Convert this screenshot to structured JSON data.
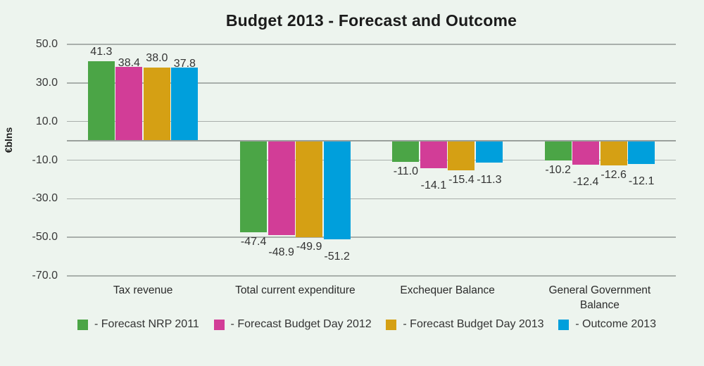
{
  "page": {
    "background": "#edf4ee",
    "grid_color": "#a9afab",
    "zero_line_color": "#9aa09c"
  },
  "chart_data": {
    "type": "bar",
    "title": "Budget 2013 - Forecast and Outcome",
    "xlabel": "",
    "ylabel": "€blns",
    "ylim": [
      -70,
      50
    ],
    "grid": true,
    "legend_position": "bottom",
    "y_ticks": [
      50,
      30,
      10,
      -10,
      -30,
      -50,
      -70
    ],
    "y_tick_labels": [
      "50.0",
      "30.0",
      "10.0",
      "-10.0",
      "-30.0",
      "-50.0",
      "-70.0"
    ],
    "categories": [
      "Tax revenue",
      "Total current expenditure",
      "Exchequer Balance",
      "General Government Balance"
    ],
    "series": [
      {
        "name": "Forecast NRP 2011",
        "legend_label": "- Forecast NRP 2011",
        "color": "#4BA546",
        "values": [
          41.3,
          -47.4,
          -11.0,
          -10.2
        ]
      },
      {
        "name": "Forecast Budget Day 2012",
        "legend_label": "- Forecast Budget Day 2012",
        "color": "#D23D97",
        "values": [
          38.4,
          -48.9,
          -14.1,
          -12.4
        ]
      },
      {
        "name": "Forecast Budget Day 2013",
        "legend_label": "- Forecast Budget Day 2013",
        "color": "#D5A014",
        "values": [
          38.0,
          -49.9,
          -15.4,
          -12.6
        ]
      },
      {
        "name": "Outcome 2013",
        "legend_label": "- Outcome 2013",
        "color": "#009FDC",
        "values": [
          37.8,
          -51.2,
          -11.3,
          -12.1
        ]
      }
    ]
  }
}
